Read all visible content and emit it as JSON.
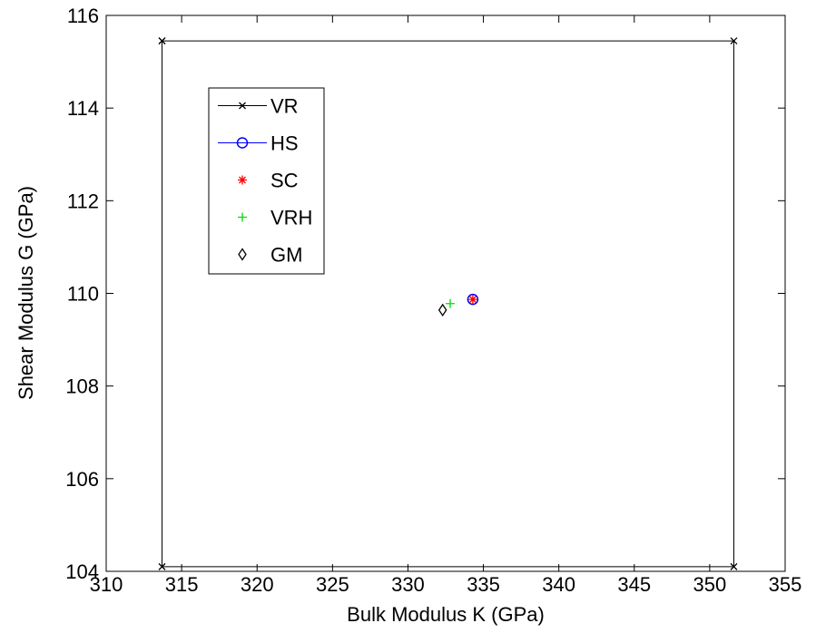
{
  "chart_data": {
    "type": "scatter",
    "xlabel": "Bulk Modulus K (GPa)",
    "ylabel": "Shear Modulus G (GPa)",
    "xlim": [
      310,
      355
    ],
    "ylim": [
      104,
      116
    ],
    "xticks": [
      310,
      315,
      320,
      325,
      330,
      335,
      340,
      345,
      350,
      355
    ],
    "yticks": [
      104,
      106,
      108,
      110,
      112,
      114,
      116
    ],
    "legend": "upper left",
    "series": [
      {
        "name": "VR",
        "color": "#000000",
        "marker": "x",
        "line": true,
        "x": [
          313.7,
          351.6,
          351.6,
          313.7,
          313.7
        ],
        "values": [
          115.45,
          115.45,
          104.1,
          104.1,
          115.45
        ]
      },
      {
        "name": "HS",
        "color": "#0000ff",
        "marker": "o",
        "line": true,
        "x": [
          334.3
        ],
        "values": [
          109.87
        ]
      },
      {
        "name": "SC",
        "color": "#ff0000",
        "marker": "*",
        "line": false,
        "x": [
          334.3
        ],
        "values": [
          109.87
        ]
      },
      {
        "name": "VRH",
        "color": "#00dd00",
        "marker": "+",
        "line": false,
        "x": [
          332.8
        ],
        "values": [
          109.78
        ]
      },
      {
        "name": "GM",
        "color": "#000000",
        "marker": "d",
        "line": false,
        "x": [
          332.3
        ],
        "values": [
          109.64
        ]
      }
    ]
  }
}
